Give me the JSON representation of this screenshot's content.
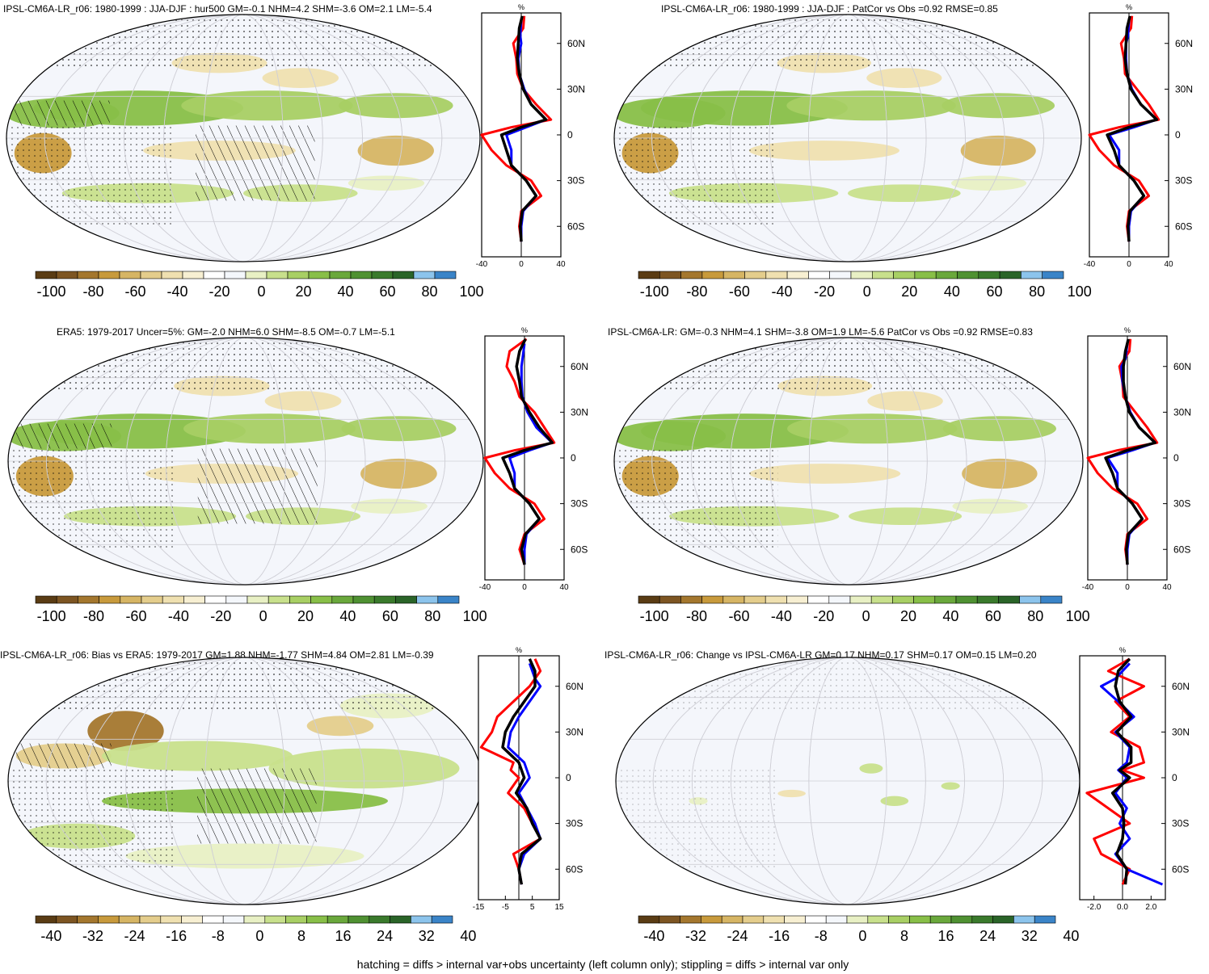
{
  "panels": [
    {
      "title": "IPSL-CM6A-LR_r06: 1980-1999 : JJA-DJF : hur500 GM=-0.1 NHM=4.2 SHM=-3.6 OM=2.1 LM=-5.4",
      "colorbar_ticks": [
        "-100",
        "-80",
        "-60",
        "-40",
        "-20",
        "0",
        "20",
        "40",
        "60",
        "80",
        "100"
      ],
      "profile_unit": "%",
      "profile_xticks": [
        "-40",
        "0",
        "40"
      ],
      "profile_yticks": [
        "60N",
        "30N",
        "0",
        "30S",
        "60S"
      ],
      "hatching": true
    },
    {
      "title": "IPSL-CM6A-LR_r06: 1980-1999 : JJA-DJF : PatCor vs Obs =0.92 RMSE=0.85",
      "colorbar_ticks": [
        "-100",
        "-80",
        "-60",
        "-40",
        "-20",
        "0",
        "20",
        "40",
        "60",
        "80",
        "100"
      ],
      "profile_unit": "%",
      "profile_xticks": [
        "-40",
        "0",
        "40"
      ],
      "profile_yticks": [
        "60N",
        "30N",
        "0",
        "30S",
        "60S"
      ],
      "hatching": false
    },
    {
      "title": "ERA5: 1979-2017 Uncer=5%: GM=-2.0 NHM=6.0 SHM=-8.5 OM=-0.7 LM=-5.1",
      "colorbar_ticks": [
        "-100",
        "-80",
        "-60",
        "-40",
        "-20",
        "0",
        "20",
        "40",
        "60",
        "80",
        "100"
      ],
      "profile_unit": "%",
      "profile_xticks": [
        "-40",
        "0",
        "40"
      ],
      "profile_yticks": [
        "60N",
        "30N",
        "0",
        "30S",
        "60S"
      ],
      "hatching": true
    },
    {
      "title": "IPSL-CM6A-LR: GM=-0.3 NHM=4.1 SHM=-3.8 OM=1.9 LM=-5.6 PatCor vs Obs =0.92 RMSE=0.83",
      "colorbar_ticks": [
        "-100",
        "-80",
        "-60",
        "-40",
        "-20",
        "0",
        "20",
        "40",
        "60",
        "80",
        "100"
      ],
      "profile_unit": "%",
      "profile_xticks": [
        "-40",
        "0",
        "40"
      ],
      "profile_yticks": [
        "60N",
        "30N",
        "0",
        "30S",
        "60S"
      ],
      "hatching": false
    },
    {
      "title": "IPSL-CM6A-LR_r06: Bias vs ERA5: 1979-2017 GM=1.88 NHM=-1.77 SHM=4.84 OM=2.81 LM=-0.39",
      "colorbar_ticks": [
        "-40",
        "-32",
        "-24",
        "-16",
        "-8",
        "0",
        "8",
        "16",
        "24",
        "32",
        "40"
      ],
      "profile_unit": "%",
      "profile_xticks": [
        "-15",
        "-5",
        "5",
        "15"
      ],
      "profile_yticks": [
        "60N",
        "30N",
        "0",
        "30S",
        "60S"
      ],
      "hatching": true
    },
    {
      "title": "IPSL-CM6A-LR_r06: Change vs IPSL-CM6A-LR GM=0.17 NHM=0.17 SHM=0.17 OM=0.15 LM=0.20",
      "colorbar_ticks": [
        "-40",
        "-32",
        "-24",
        "-16",
        "-8",
        "0",
        "8",
        "16",
        "24",
        "32",
        "40"
      ],
      "profile_unit": "%",
      "profile_xticks": [
        "-2.0",
        "0.0",
        "2.0"
      ],
      "profile_yticks": [
        "60N",
        "30N",
        "0",
        "30S",
        "60S"
      ],
      "hatching": false
    }
  ],
  "colors": {
    "bar": [
      "#5a3c14",
      "#7d5522",
      "#a4772e",
      "#c89a3c",
      "#d6b564",
      "#e4cd8c",
      "#efe0b0",
      "#f7efd2",
      "#ffffff",
      "#f4f7fb",
      "#e8f0c4",
      "#c8e08c",
      "#a8cf64",
      "#88bf48",
      "#6aa83c",
      "#4f9132",
      "#3a7a2c",
      "#2a6428",
      "#8cc4ec",
      "#3a84c8"
    ],
    "obs": "#ff0000",
    "model": "#0000ff",
    "mean": "#000000"
  },
  "chart_data": [
    {
      "type": "line",
      "panel": 1,
      "ylim": [
        -80,
        80
      ],
      "xlim": [
        -40,
        40
      ],
      "series": [
        {
          "lat": [
            78,
            70,
            60,
            50,
            40,
            30,
            20,
            10,
            5,
            0,
            -10,
            -20,
            -30,
            -40,
            -50,
            -60,
            -70
          ],
          "values": [
            3,
            2,
            -8,
            -5,
            -4,
            2,
            15,
            30,
            -10,
            -40,
            -30,
            -15,
            10,
            20,
            0,
            -2,
            0
          ]
        },
        {
          "lat": [
            75,
            65,
            60,
            50,
            40,
            30,
            20,
            10,
            5,
            0,
            -10,
            -20,
            -30,
            -40,
            -50,
            -60,
            -70
          ],
          "values": [
            0,
            -1,
            0,
            -3,
            -2,
            3,
            10,
            25,
            5,
            -15,
            -10,
            -10,
            5,
            15,
            2,
            0,
            0
          ]
        },
        {
          "lat": [
            78,
            70,
            60,
            50,
            40,
            30,
            20,
            10,
            5,
            0,
            -10,
            -20,
            -30,
            -40,
            -50,
            -60,
            -70
          ],
          "values": [
            1,
            -2,
            -3,
            -4,
            -2,
            2,
            10,
            25,
            0,
            -20,
            -15,
            -10,
            5,
            15,
            1,
            -1,
            0
          ]
        }
      ]
    },
    {
      "type": "line",
      "panel": 2,
      "ylim": [
        -80,
        80
      ],
      "xlim": [
        -40,
        40
      ],
      "series": [
        {
          "lat": [
            78,
            70,
            60,
            50,
            40,
            30,
            20,
            10,
            5,
            0,
            -10,
            -20,
            -30,
            -40,
            -50,
            -60,
            -70
          ],
          "values": [
            3,
            2,
            -8,
            -5,
            -4,
            8,
            20,
            30,
            -10,
            -40,
            -30,
            -15,
            10,
            20,
            0,
            -2,
            0
          ]
        },
        {
          "lat": [
            75,
            65,
            60,
            50,
            40,
            30,
            20,
            10,
            5,
            0,
            -10,
            -20,
            -30,
            -40,
            -50,
            -60,
            -70
          ],
          "values": [
            0,
            -1,
            -3,
            -3,
            -2,
            3,
            12,
            28,
            5,
            -20,
            -10,
            -10,
            5,
            15,
            2,
            0,
            0
          ]
        },
        {
          "lat": [
            78,
            70,
            60,
            50,
            40,
            30,
            20,
            10,
            5,
            0,
            -10,
            -20,
            -30,
            -40,
            -50,
            -60,
            -70
          ],
          "values": [
            1,
            -2,
            -3,
            -4,
            -2,
            2,
            12,
            28,
            0,
            -22,
            -15,
            -10,
            5,
            15,
            1,
            -1,
            0
          ]
        }
      ]
    },
    {
      "type": "line",
      "panel": 3,
      "ylim": [
        -80,
        80
      ],
      "xlim": [
        -40,
        40
      ],
      "series": [
        {
          "lat": [
            78,
            70,
            60,
            50,
            40,
            30,
            20,
            10,
            5,
            0,
            -10,
            -20,
            -30,
            -40,
            -50,
            -60,
            -70
          ],
          "values": [
            2,
            -15,
            -18,
            -10,
            -5,
            10,
            20,
            30,
            -10,
            -40,
            -30,
            -15,
            10,
            20,
            0,
            -5,
            0
          ]
        },
        {
          "lat": [
            75,
            65,
            60,
            50,
            40,
            30,
            20,
            10,
            5,
            0,
            -10,
            -20,
            -30,
            -40,
            -50,
            -60,
            -70
          ],
          "values": [
            0,
            -2,
            -3,
            -3,
            -2,
            3,
            12,
            28,
            5,
            -15,
            -10,
            -10,
            5,
            15,
            2,
            0,
            0
          ]
        },
        {
          "lat": [
            78,
            70,
            60,
            50,
            40,
            30,
            20,
            10,
            5,
            0,
            -10,
            -20,
            -30,
            -40,
            -50,
            -60,
            -70
          ],
          "values": [
            1,
            -5,
            -8,
            -5,
            -3,
            5,
            15,
            28,
            0,
            -22,
            -15,
            -10,
            5,
            15,
            1,
            -3,
            0
          ]
        }
      ]
    },
    {
      "type": "line",
      "panel": 4,
      "ylim": [
        -80,
        80
      ],
      "xlim": [
        -40,
        40
      ],
      "series": [
        {
          "lat": [
            78,
            70,
            60,
            50,
            40,
            30,
            20,
            10,
            5,
            0,
            -10,
            -20,
            -30,
            -40,
            -50,
            -60,
            -70
          ],
          "values": [
            3,
            2,
            -8,
            -5,
            -4,
            8,
            20,
            30,
            -10,
            -40,
            -30,
            -15,
            10,
            20,
            0,
            -2,
            0
          ]
        },
        {
          "lat": [
            75,
            65,
            60,
            50,
            40,
            30,
            20,
            10,
            5,
            0,
            -10,
            -20,
            -30,
            -40,
            -50,
            -60,
            -70
          ],
          "values": [
            0,
            -2,
            -6,
            -5,
            -2,
            3,
            12,
            28,
            5,
            -20,
            -10,
            -10,
            5,
            15,
            2,
            0,
            0
          ]
        },
        {
          "lat": [
            78,
            70,
            60,
            50,
            40,
            30,
            20,
            10,
            5,
            0,
            -10,
            -20,
            -30,
            -40,
            -50,
            -60,
            -70
          ],
          "values": [
            1,
            -2,
            -4,
            -4,
            -2,
            2,
            12,
            28,
            0,
            -22,
            -15,
            -10,
            5,
            15,
            1,
            -1,
            0
          ]
        }
      ]
    },
    {
      "type": "line",
      "panel": 5,
      "ylim": [
        -80,
        80
      ],
      "xlim": [
        -15,
        15
      ],
      "series": [
        {
          "lat": [
            78,
            70,
            60,
            50,
            40,
            30,
            20,
            10,
            5,
            0,
            -10,
            -20,
            -30,
            -40,
            -50,
            -60,
            -70
          ],
          "values": [
            6,
            8,
            4,
            -2,
            -8,
            -10,
            -14,
            -2,
            -3,
            0,
            -4,
            2,
            5,
            8,
            -2,
            0,
            1
          ]
        },
        {
          "lat": [
            75,
            65,
            60,
            50,
            40,
            30,
            20,
            10,
            5,
            0,
            -10,
            -20,
            -30,
            -40,
            -50,
            -60,
            -70
          ],
          "values": [
            4,
            6,
            8,
            4,
            0,
            -3,
            -4,
            2,
            3,
            4,
            0,
            3,
            6,
            8,
            2,
            0,
            1
          ]
        },
        {
          "lat": [
            78,
            70,
            60,
            50,
            40,
            30,
            20,
            10,
            5,
            0,
            -10,
            -20,
            -30,
            -40,
            -50,
            -60,
            -70
          ],
          "values": [
            4,
            6,
            6,
            2,
            -2,
            -5,
            -6,
            0,
            1,
            2,
            -1,
            3,
            5,
            8,
            1,
            0,
            1
          ]
        }
      ]
    },
    {
      "type": "line",
      "panel": 6,
      "ylim": [
        -80,
        80
      ],
      "xlim": [
        -3,
        3
      ],
      "series": [
        {
          "lat": [
            78,
            70,
            60,
            50,
            40,
            30,
            20,
            10,
            5,
            0,
            -10,
            -20,
            -30,
            -40,
            -50,
            -60,
            -70
          ],
          "values": [
            0.5,
            -1.0,
            1.5,
            -0.5,
            0.5,
            -0.8,
            1.2,
            1.5,
            0.0,
            1.5,
            -2.5,
            -1.0,
            0.5,
            -2.0,
            -1.5,
            0.5,
            0.0
          ]
        },
        {
          "lat": [
            75,
            65,
            60,
            50,
            40,
            30,
            20,
            10,
            5,
            0,
            -10,
            -20,
            -30,
            -40,
            -50,
            -60,
            -70
          ],
          "values": [
            0.5,
            -0.5,
            -1.5,
            -0.3,
            0.8,
            -0.5,
            0.5,
            0.3,
            -0.3,
            0.3,
            -0.5,
            0.3,
            -0.2,
            0.5,
            -0.5,
            0.3,
            2.8
          ]
        },
        {
          "lat": [
            78,
            70,
            60,
            50,
            40,
            30,
            20,
            10,
            5,
            0,
            -10,
            -20,
            -30,
            -40,
            -50,
            -60,
            -70
          ],
          "values": [
            0.5,
            -0.3,
            -0.5,
            -0.2,
            0.6,
            -0.4,
            0.6,
            0.6,
            -0.2,
            0.5,
            -0.7,
            0.0,
            0.1,
            0.0,
            -0.4,
            0.3,
            0.2
          ]
        }
      ]
    }
  ],
  "footer": "hatching = diffs > internal var+obs uncertainty (left column only); stippling = diffs > internal var only"
}
